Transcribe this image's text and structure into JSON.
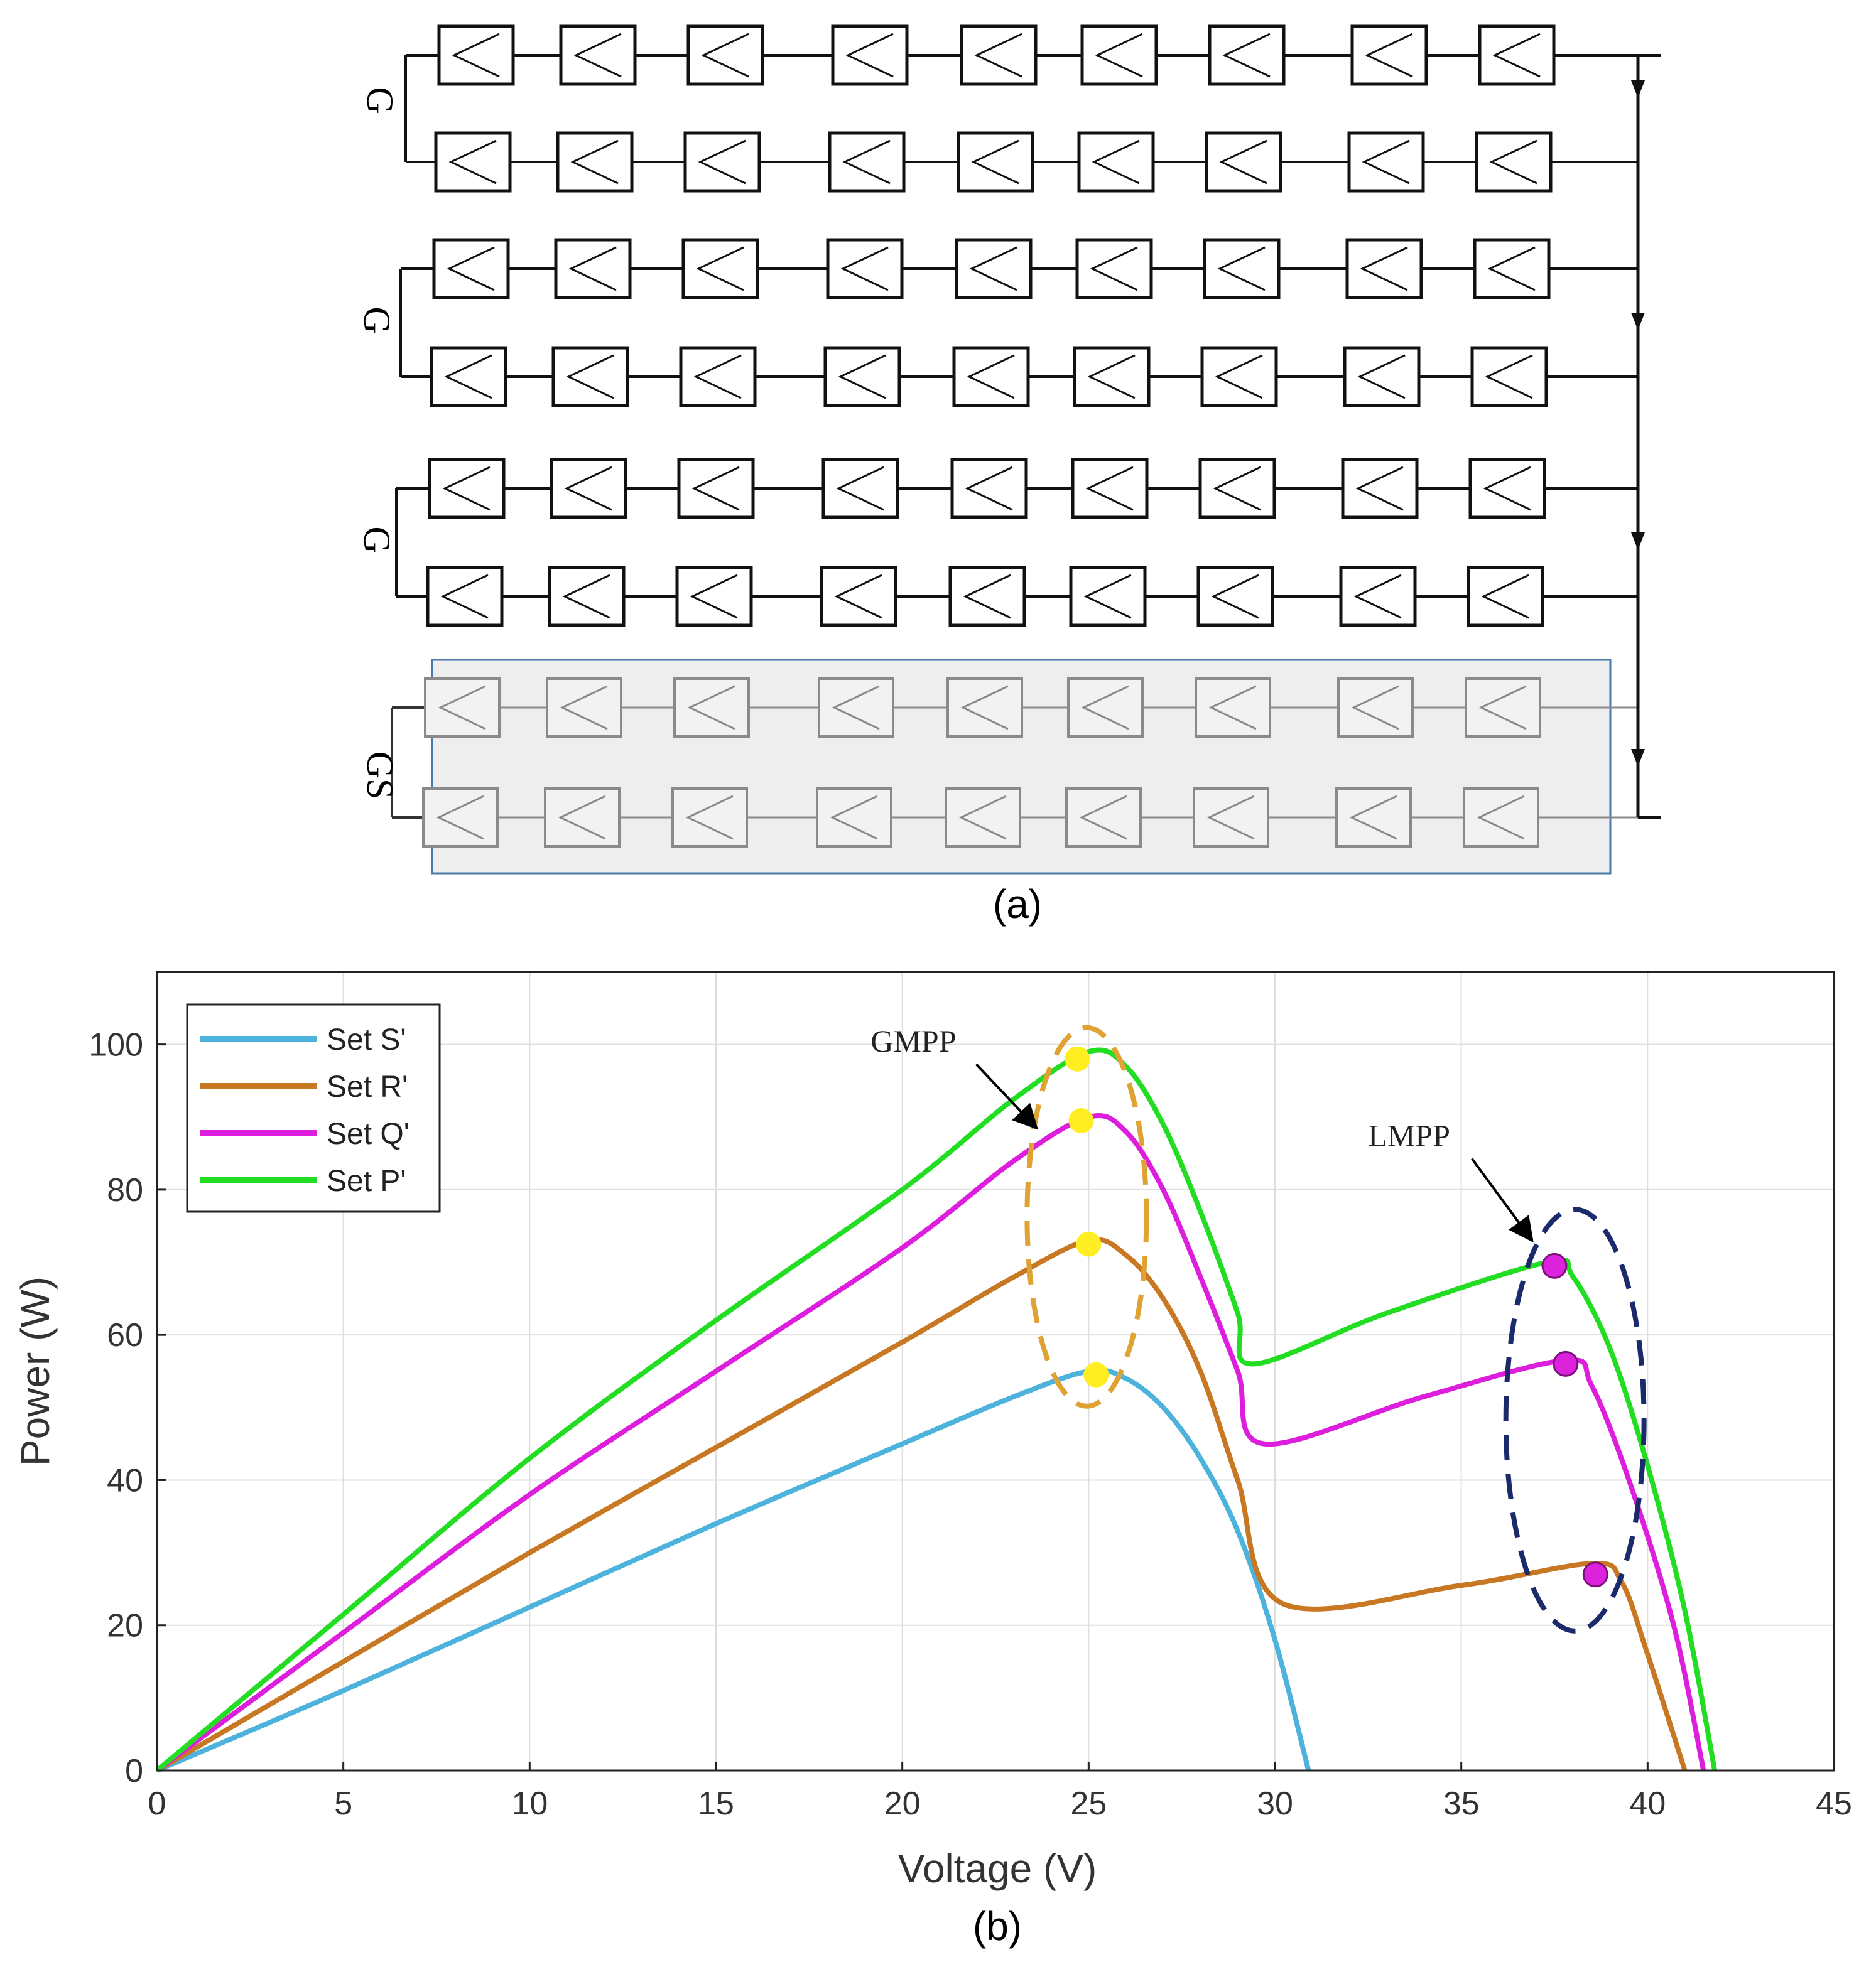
{
  "panel_a": {
    "caption": "(a)",
    "group_labels": [
      "G",
      "G",
      "G",
      "GS"
    ],
    "rows": 8,
    "modules_per_row": 9,
    "shaded_group": "GS"
  },
  "chart_data": {
    "type": "line",
    "caption": "(b)",
    "xlabel": "Voltage (V)",
    "ylabel": "Power (W)",
    "xlim": [
      0,
      45
    ],
    "ylim": [
      0,
      110
    ],
    "xticks": [
      0,
      5,
      10,
      15,
      20,
      25,
      30,
      35,
      40,
      45
    ],
    "yticks": [
      0,
      20,
      40,
      60,
      80,
      100
    ],
    "grid": true,
    "legend_position": "top-left",
    "series": [
      {
        "name": "Set S'",
        "color": "#4db3dd",
        "points": [
          [
            0,
            0
          ],
          [
            5,
            11
          ],
          [
            10,
            22.5
          ],
          [
            15,
            34
          ],
          [
            20,
            45
          ],
          [
            23,
            51.5
          ],
          [
            25,
            55
          ],
          [
            26,
            54
          ],
          [
            27,
            50
          ],
          [
            28,
            43
          ],
          [
            29,
            33
          ],
          [
            30,
            18
          ],
          [
            30.9,
            0
          ]
        ]
      },
      {
        "name": "Set R'",
        "color": "#c87822",
        "points": [
          [
            0,
            0
          ],
          [
            5,
            15
          ],
          [
            10,
            30
          ],
          [
            15,
            44.5
          ],
          [
            20,
            59
          ],
          [
            23,
            68
          ],
          [
            25,
            73
          ],
          [
            26,
            71
          ],
          [
            27,
            65
          ],
          [
            28,
            55
          ],
          [
            29,
            40
          ],
          [
            30.2,
            23
          ],
          [
            35,
            25.5
          ],
          [
            38.5,
            28.5
          ],
          [
            39.3,
            26
          ],
          [
            40,
            16
          ],
          [
            41,
            0
          ]
        ]
      },
      {
        "name": "Set Q'",
        "color": "#dd1edd",
        "points": [
          [
            0,
            0
          ],
          [
            5,
            19
          ],
          [
            10,
            38
          ],
          [
            15,
            55
          ],
          [
            20,
            72
          ],
          [
            23,
            84
          ],
          [
            25,
            90
          ],
          [
            26,
            88
          ],
          [
            27,
            80
          ],
          [
            28,
            68
          ],
          [
            29,
            55
          ],
          [
            29.7,
            45
          ],
          [
            34,
            51.5
          ],
          [
            37.8,
            56.5
          ],
          [
            38.5,
            53
          ],
          [
            39.5,
            40
          ],
          [
            40.7,
            20
          ],
          [
            41.5,
            0
          ]
        ]
      },
      {
        "name": "Set P'",
        "color": "#22dd22",
        "points": [
          [
            0,
            0
          ],
          [
            5,
            21.5
          ],
          [
            10,
            43
          ],
          [
            15,
            62
          ],
          [
            20,
            80
          ],
          [
            23,
            92.5
          ],
          [
            25,
            99
          ],
          [
            26,
            97
          ],
          [
            27,
            89
          ],
          [
            28,
            77
          ],
          [
            29,
            63
          ],
          [
            29.4,
            56
          ],
          [
            33,
            63
          ],
          [
            37.3,
            70
          ],
          [
            38,
            68
          ],
          [
            39,
            58
          ],
          [
            40,
            42
          ],
          [
            41,
            22
          ],
          [
            41.8,
            0
          ]
        ]
      }
    ],
    "gmpp_points": [
      [
        24.7,
        98
      ],
      [
        24.8,
        89.5
      ],
      [
        25,
        72.5
      ],
      [
        25.2,
        54.5
      ]
    ],
    "lmpp_points": [
      [
        37.5,
        69.5
      ],
      [
        37.8,
        56
      ],
      [
        38.6,
        27
      ]
    ],
    "annotations": [
      {
        "text": "GMPP",
        "anchor": [
          20.3,
          99
        ],
        "target": [
          23.6,
          88.5
        ]
      },
      {
        "text": "LMPP",
        "anchor": [
          33.6,
          86
        ],
        "target": [
          36.9,
          73
        ]
      }
    ]
  },
  "colors": {
    "gmpp_marker": "#ffee22",
    "gmpp_ellipse": "#e0a232",
    "lmpp_marker": "#dd22dd",
    "lmpp_ellipse": "#1a2a6a",
    "shade": "#eeeeee",
    "shade_border": "#4a78a8"
  }
}
